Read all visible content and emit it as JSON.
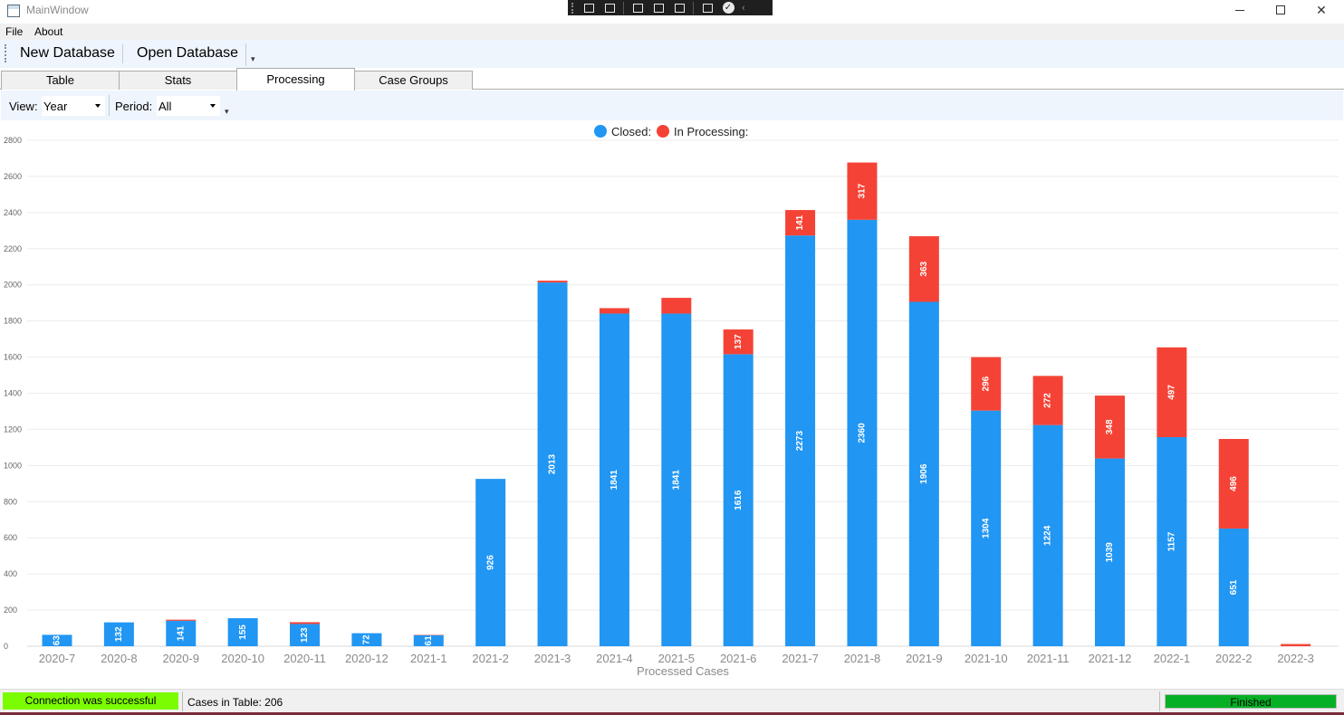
{
  "window": {
    "title": "MainWindow"
  },
  "capture_toolbar": {
    "icons": [
      "snip-icon",
      "record-icon",
      "pointer-icon",
      "window-icon",
      "region-icon",
      "settings-icon",
      "check-icon",
      "chevron-left-icon"
    ]
  },
  "menu": {
    "items": [
      "File",
      "About"
    ]
  },
  "toolbar": {
    "new_db": "New Database",
    "open_db": "Open Database",
    "overflow": "▾"
  },
  "tabs": [
    "Table",
    "Stats",
    "Processing",
    "Case Groups"
  ],
  "active_tab": "Processing",
  "filters": {
    "view_label": "View:",
    "view_value": "Year",
    "period_label": "Period:",
    "period_value": "All",
    "overflow": "▾"
  },
  "status": {
    "connection": "Connection was successful",
    "connection_color": "#7cfc00",
    "cases": "Cases in Table: 206",
    "progress_text": "Finished",
    "progress": 1.0
  },
  "chart_data": {
    "type": "bar",
    "stacked": true,
    "xlabel": "Processed Cases",
    "ylabel": "",
    "ylim": [
      0,
      2800
    ],
    "y_ticks": [
      0,
      200,
      400,
      600,
      800,
      1000,
      1200,
      1400,
      1600,
      1800,
      2000,
      2200,
      2400,
      2600,
      2800
    ],
    "grid": true,
    "legend_position": "top-center",
    "categories": [
      "2020-7",
      "2020-8",
      "2020-9",
      "2020-10",
      "2020-11",
      "2020-12",
      "2021-1",
      "2021-2",
      "2021-3",
      "2021-4",
      "2021-5",
      "2021-6",
      "2021-7",
      "2021-8",
      "2021-9",
      "2021-10",
      "2021-11",
      "2021-12",
      "2022-1",
      "2022-2",
      "2022-3"
    ],
    "series": [
      {
        "name": "Closed:",
        "color": "#2196f3",
        "values": [
          63,
          132,
          141,
          155,
          123,
          72,
          61,
          926,
          2013,
          1841,
          1841,
          1616,
          2273,
          2360,
          1906,
          1304,
          1224,
          1039,
          1157,
          651,
          0
        ]
      },
      {
        "name": "In Processing:",
        "color": "#f44336",
        "values": [
          0,
          0,
          6,
          0,
          10,
          0,
          2,
          0,
          10,
          30,
          87,
          137,
          141,
          317,
          363,
          296,
          272,
          348,
          497,
          496,
          12
        ]
      }
    ],
    "data_labels": {
      "Closed:": [
        "63",
        "132",
        "141",
        "155",
        "123",
        "72",
        "61",
        "926",
        "2013",
        "1841",
        "1841",
        "1616",
        "2273",
        "2360",
        "1906",
        "1304",
        "1224",
        "1039",
        "1157",
        "651",
        ""
      ],
      "In Processing:": [
        "",
        "",
        "",
        "",
        "",
        "",
        "",
        "",
        "",
        "",
        "",
        "137",
        "141",
        "317",
        "363",
        "296",
        "272",
        "348",
        "497",
        "496",
        ""
      ]
    }
  }
}
